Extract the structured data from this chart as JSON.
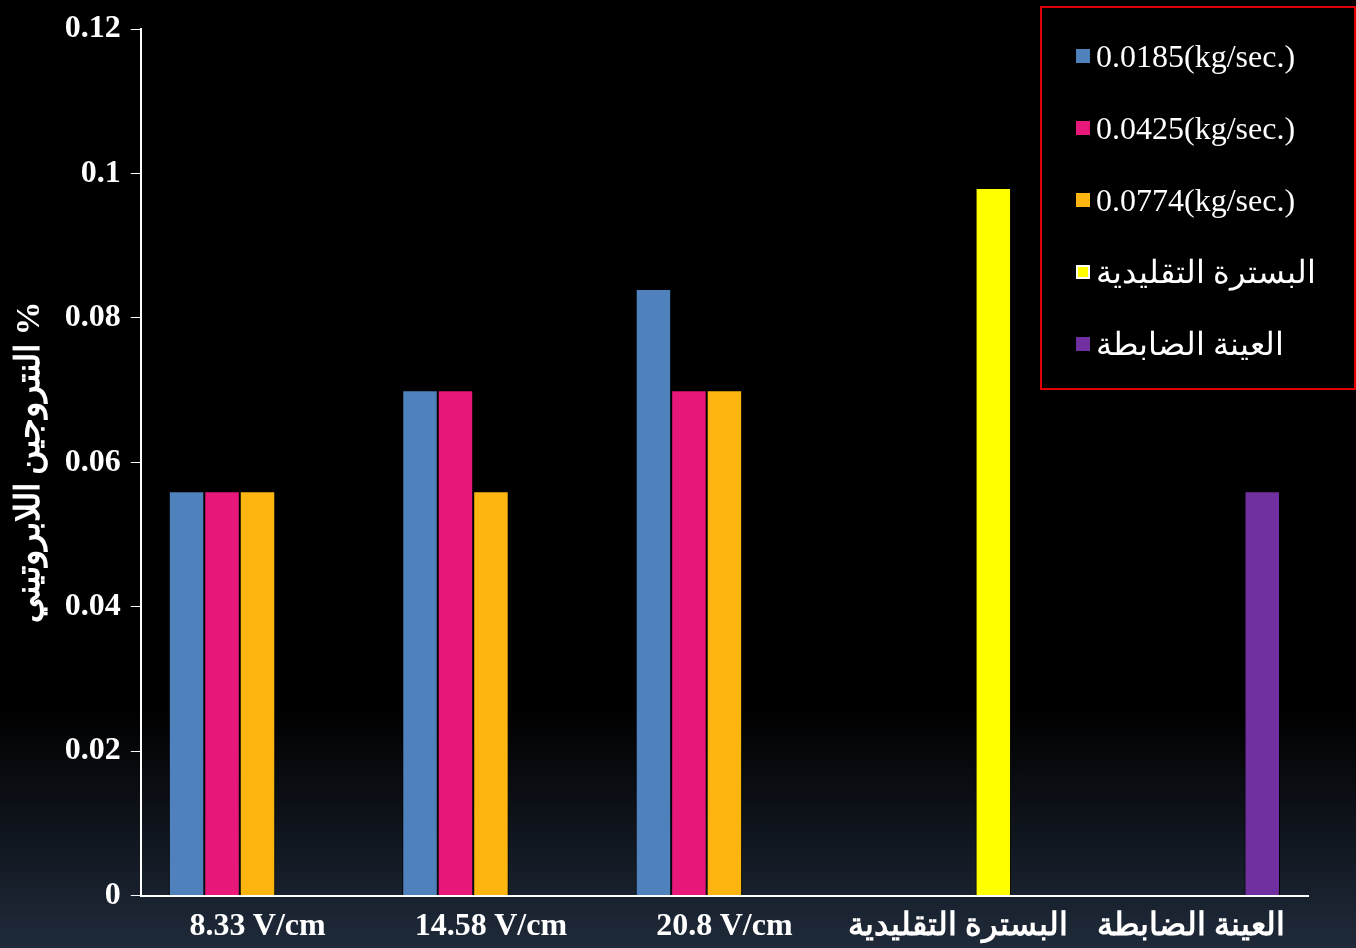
{
  "chart_data": {
    "type": "bar",
    "ylabel": "النتروجين اللابروتيني %",
    "categories": [
      "8.33 V/cm",
      "14.58 V/cm",
      "20.8 V/cm",
      "البسترة التقليدية",
      "العينة الضابطة"
    ],
    "series": [
      {
        "name": "0.0185(kg/sec.)",
        "color": "#4f81bd",
        "values": [
          0.056,
          0.07,
          0.084,
          null,
          null
        ]
      },
      {
        "name": "0.0425(kg/sec.)",
        "color": "#e8177a",
        "values": [
          0.056,
          0.07,
          0.07,
          null,
          null
        ]
      },
      {
        "name": "0.0774(kg/sec.)",
        "color": "#ffb50f",
        "values": [
          0.056,
          0.056,
          0.07,
          null,
          null
        ]
      },
      {
        "name": "البسترة التقليدية",
        "color": "#ffff00",
        "values": [
          null,
          null,
          null,
          0.098,
          null
        ]
      },
      {
        "name": "العينة الضابطة",
        "color": "#7030a0",
        "values": [
          null,
          null,
          null,
          null,
          0.056
        ]
      }
    ],
    "ylim": [
      0,
      0.12
    ],
    "yticks": [
      0,
      0.02,
      0.04,
      0.06,
      0.08,
      0.1,
      0.12
    ],
    "grid": false,
    "legend": "top right"
  }
}
